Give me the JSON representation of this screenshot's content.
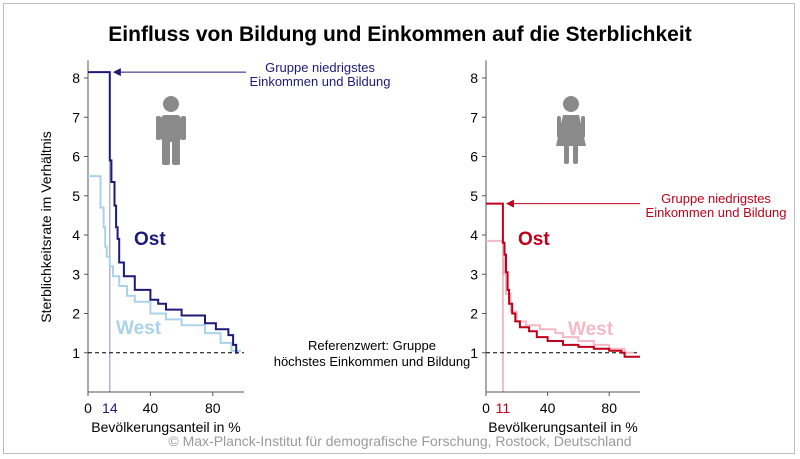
{
  "title": "Einfluss von Bildung und Einkommen auf die Sterblichkeit",
  "footer": "© Max-Planck-Institut für demografische Forschung, Rostock, Deutschland",
  "colors": {
    "ost_men": "#1f1a7a",
    "west_men": "#a9d3ea",
    "ost_women": "#c0001a",
    "west_women": "#f4b9c6",
    "reference": "#000000",
    "icon": "#8a8a8a"
  },
  "chart_data": [
    {
      "type": "line",
      "panel": "men",
      "icon": "man-icon",
      "ylabel": "Sterblichkeitsrate im Verhältnis",
      "xlabel": "Bevölkerungsanteil in %",
      "xlim": [
        0,
        100
      ],
      "ylim": [
        0,
        8.5
      ],
      "yticks": [
        "1",
        "2",
        "3",
        "4",
        "5",
        "6",
        "7",
        "8"
      ],
      "xticks": [
        "0",
        "40",
        "80"
      ],
      "highlight_tick": "14",
      "highlight_tick_color": "#1f1a7a",
      "reference_value": 1,
      "reference_label": [
        "Referenzwert: Gruppe",
        "höchstes Einkommen und Bildung"
      ],
      "annotation": [
        "Gruppe niedrigstes",
        "Einkommen und Bildung"
      ],
      "annotation_value": 8.15,
      "series": [
        {
          "name": "Ost",
          "x": [
            0,
            14,
            14,
            15,
            15,
            17,
            17,
            18,
            18,
            19,
            19,
            20,
            20,
            23,
            23,
            30,
            30,
            40,
            40,
            45,
            45,
            50,
            50,
            60,
            60,
            75,
            75,
            82,
            82,
            90,
            90,
            93,
            93,
            95,
            95,
            96
          ],
          "y": [
            8.15,
            8.15,
            5.9,
            5.9,
            5.35,
            5.35,
            4.75,
            4.75,
            4.2,
            4.2,
            3.9,
            3.9,
            3.3,
            3.3,
            2.95,
            2.95,
            2.6,
            2.6,
            2.35,
            2.35,
            2.25,
            2.25,
            2.1,
            2.1,
            1.95,
            1.95,
            1.75,
            1.75,
            1.6,
            1.6,
            1.45,
            1.45,
            1.2,
            1.2,
            1.0,
            1.0
          ]
        },
        {
          "name": "West",
          "x": [
            0,
            8,
            8,
            10,
            10,
            11,
            11,
            12,
            12,
            14,
            14,
            16,
            16,
            20,
            20,
            25,
            25,
            30,
            30,
            40,
            40,
            50,
            50,
            60,
            60,
            75,
            75,
            85,
            85,
            92,
            92,
            98
          ],
          "y": [
            5.5,
            5.5,
            4.7,
            4.7,
            4.2,
            4.2,
            3.7,
            3.7,
            3.45,
            3.45,
            3.2,
            3.2,
            2.95,
            2.95,
            2.7,
            2.7,
            2.45,
            2.45,
            2.3,
            2.3,
            2.0,
            2.0,
            1.85,
            1.85,
            1.7,
            1.7,
            1.5,
            1.5,
            1.25,
            1.25,
            1.05,
            1.05
          ]
        }
      ]
    },
    {
      "type": "line",
      "panel": "women",
      "icon": "woman-icon",
      "xlabel": "Bevölkerungsanteil in %",
      "xlim": [
        0,
        100
      ],
      "ylim": [
        0,
        8.5
      ],
      "yticks": [
        "1",
        "2",
        "3",
        "4",
        "5",
        "6",
        "7",
        "8"
      ],
      "xticks": [
        "0",
        "40",
        "80"
      ],
      "highlight_tick": "11",
      "highlight_tick_color": "#c0001a",
      "reference_value": 1,
      "annotation": [
        "Gruppe niedrigstes",
        "Einkommen und Bildung"
      ],
      "annotation_value": 4.8,
      "series": [
        {
          "name": "Ost",
          "x": [
            0,
            11,
            11,
            12,
            12,
            13,
            13,
            14,
            14,
            15,
            15,
            17,
            17,
            19,
            19,
            22,
            22,
            28,
            28,
            33,
            33,
            40,
            40,
            50,
            50,
            60,
            60,
            70,
            70,
            80,
            80,
            88,
            88,
            90,
            90,
            100
          ],
          "y": [
            4.8,
            4.8,
            3.8,
            3.8,
            3.5,
            3.5,
            3.05,
            3.05,
            2.6,
            2.6,
            2.25,
            2.25,
            2.0,
            2.0,
            1.8,
            1.8,
            1.65,
            1.65,
            1.55,
            1.55,
            1.4,
            1.4,
            1.3,
            1.3,
            1.2,
            1.2,
            1.15,
            1.15,
            1.1,
            1.1,
            1.05,
            1.05,
            1.0,
            1.0,
            0.9,
            0.9
          ]
        },
        {
          "name": "West",
          "x": [
            0,
            11,
            11,
            12,
            12,
            13,
            13,
            16,
            16,
            20,
            20,
            26,
            26,
            35,
            35,
            45,
            45,
            50,
            50,
            60,
            60,
            70,
            70,
            80,
            80,
            90,
            90,
            96
          ],
          "y": [
            3.85,
            3.85,
            3.45,
            3.45,
            3.0,
            3.0,
            2.5,
            2.5,
            2.05,
            2.05,
            1.8,
            1.8,
            1.7,
            1.7,
            1.6,
            1.6,
            1.5,
            1.5,
            1.4,
            1.4,
            1.3,
            1.3,
            1.2,
            1.2,
            1.1,
            1.1,
            1.0,
            1.0
          ]
        }
      ]
    }
  ]
}
